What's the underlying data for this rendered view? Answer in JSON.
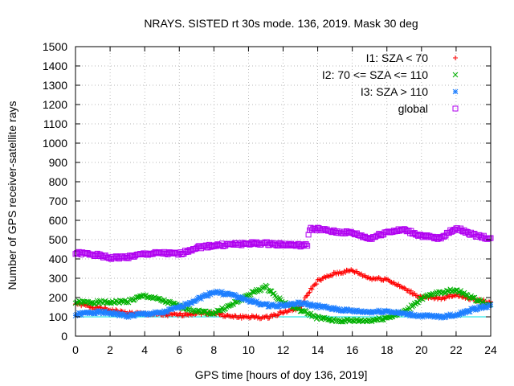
{
  "chart_data": {
    "type": "scatter",
    "title": "NRAYS. SISTED rt 30s mode. 136, 2019. Mask 30 deg",
    "xlabel": "GPS time [hours of doy 136, 2019]",
    "ylabel": "Number of GPS receiver-satellite rays",
    "xlim": [
      0,
      24
    ],
    "ylim": [
      0,
      1500
    ],
    "xticks": [
      0,
      2,
      4,
      6,
      8,
      10,
      12,
      14,
      16,
      18,
      20,
      22,
      24
    ],
    "yticks": [
      0,
      100,
      200,
      300,
      400,
      500,
      600,
      700,
      800,
      900,
      1000,
      1100,
      1200,
      1300,
      1400,
      1500
    ],
    "grid": true,
    "legend_position": "top-right",
    "reference_lines": [
      {
        "y": 100,
        "color": "#00e0e0"
      }
    ],
    "series": [
      {
        "name": "I1: SZA < 70",
        "marker": "plus",
        "color": "#ff0000",
        "x": [
          0,
          1,
          2,
          3,
          4,
          5,
          6,
          7,
          8,
          9,
          10,
          11,
          12,
          13,
          13.5,
          14,
          15,
          16,
          17,
          18,
          19,
          20,
          21,
          22,
          23,
          24
        ],
        "y": [
          170,
          150,
          135,
          120,
          115,
          110,
          110,
          120,
          120,
          100,
          100,
          95,
          125,
          145,
          230,
          285,
          325,
          340,
          300,
          295,
          245,
          200,
          195,
          215,
          190,
          175
        ]
      },
      {
        "name": "I2: 70 <= SZA <= 110",
        "marker": "x",
        "color": "#00b000",
        "x": [
          0,
          1,
          2,
          3,
          4,
          5,
          6,
          7,
          8,
          9,
          10,
          11,
          12,
          13,
          14,
          15,
          16,
          17,
          18,
          19,
          20,
          21,
          22,
          23,
          24
        ],
        "y": [
          175,
          175,
          175,
          180,
          210,
          185,
          155,
          130,
          120,
          160,
          215,
          255,
          175,
          135,
          95,
          80,
          80,
          80,
          95,
          125,
          195,
          225,
          240,
          195,
          160
        ]
      },
      {
        "name": "I3: SZA > 110",
        "marker": "star",
        "color": "#1e7fff",
        "x": [
          0,
          1,
          2,
          3,
          4,
          5,
          6,
          7,
          8,
          9,
          10,
          11,
          12,
          13,
          14,
          15,
          16,
          17,
          18,
          19,
          20,
          21,
          22,
          23,
          24
        ],
        "y": [
          110,
          125,
          120,
          105,
          115,
          120,
          150,
          190,
          230,
          215,
          185,
          160,
          160,
          170,
          155,
          140,
          130,
          125,
          130,
          115,
          105,
          100,
          110,
          140,
          160
        ]
      },
      {
        "name": "global",
        "marker": "square",
        "color": "#b000f0",
        "x": [
          0,
          1,
          2,
          3,
          4,
          5,
          6,
          7,
          8,
          9,
          10,
          11,
          12,
          13,
          13.4,
          13.5,
          14,
          15,
          16,
          17,
          18,
          19,
          20,
          21,
          22,
          23,
          24
        ],
        "y": [
          430,
          425,
          405,
          410,
          425,
          430,
          425,
          460,
          470,
          475,
          480,
          480,
          475,
          470,
          470,
          555,
          555,
          540,
          535,
          505,
          540,
          550,
          520,
          505,
          560,
          525,
          505
        ]
      }
    ]
  }
}
